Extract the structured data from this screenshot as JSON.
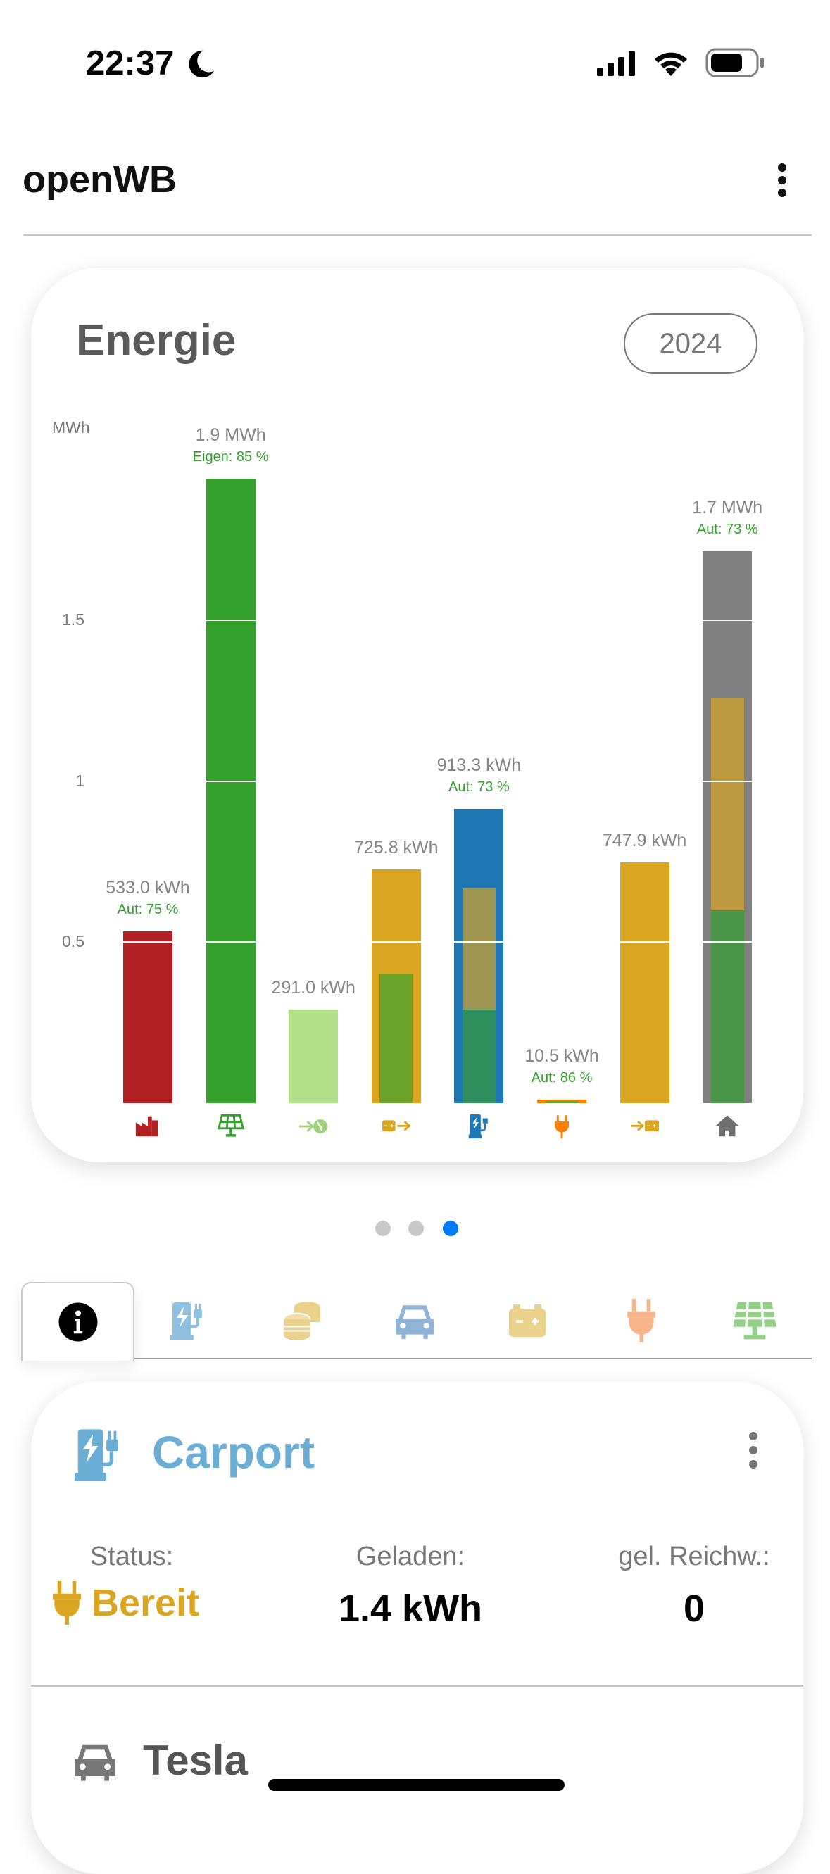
{
  "status_bar": {
    "time": "22:37",
    "icons": [
      "moon-icon",
      "signal-icon",
      "wifi-icon",
      "battery-icon"
    ]
  },
  "header": {
    "title": "openWB",
    "menu_icon": "kebab-menu-icon"
  },
  "energy_card": {
    "title": "Energie",
    "period": "2024"
  },
  "chart_data": {
    "type": "bar",
    "title": "Energie",
    "ylabel": "MWh",
    "ylim": [
      0,
      2.1
    ],
    "yticks": [
      {
        "value": 0.5,
        "label": "0.5"
      },
      {
        "value": 1,
        "label": "1"
      },
      {
        "value": 1.5,
        "label": "1.5"
      }
    ],
    "grid": true,
    "bars": [
      {
        "category": "grid-import",
        "icon": "factory-icon",
        "value": 0.533,
        "label": "533.0 kWh",
        "sublabel": "Aut: 75 %",
        "color": "#b22024",
        "icon_color": "#b22024",
        "segments": []
      },
      {
        "category": "pv",
        "icon": "solar-panel-icon",
        "value": 1.94,
        "label": "1.9 MWh",
        "sublabel": "Eigen: 85 %",
        "color": "#33a02c",
        "icon_color": "#33a02c",
        "segments": []
      },
      {
        "category": "grid-export",
        "icon": "arrow-to-globe-icon",
        "value": 0.291,
        "label": "291.0 kWh",
        "sublabel": "",
        "color": "#b2df8a",
        "icon_color": "#9ed37a",
        "segments": []
      },
      {
        "category": "battery-discharge",
        "icon": "battery-out-icon",
        "value": 0.7258,
        "label": "725.8 kWh",
        "sublabel": "",
        "color": "#daa520",
        "icon_color": "#daa520",
        "segments": [
          {
            "from": 0,
            "to": 0.4,
            "color": "#6aa128"
          }
        ]
      },
      {
        "category": "charge-points",
        "icon": "charging-station-icon",
        "value": 0.9133,
        "label": "913.3 kWh",
        "sublabel": "Aut: 73 %",
        "color": "#1f78b4",
        "icon_color": "#1f78b4",
        "segments": [
          {
            "from": 0,
            "to": 0.29,
            "color": "#2e8f5c"
          },
          {
            "from": 0.29,
            "to": 0.668,
            "color": "#9c9450"
          }
        ]
      },
      {
        "category": "devices",
        "icon": "plug-icon",
        "value": 0.0105,
        "label": "10.5 kWh",
        "sublabel": "Aut: 86 %",
        "color": "#ff7f00",
        "icon_color": "#ff7f00",
        "segments": [
          {
            "from": 0,
            "to": 0.006,
            "color": "#6aa128"
          }
        ]
      },
      {
        "category": "battery-charge",
        "icon": "battery-in-icon",
        "value": 0.7479,
        "label": "747.9 kWh",
        "sublabel": "",
        "color": "#daa520",
        "icon_color": "#daa520",
        "segments": []
      },
      {
        "category": "house",
        "icon": "house-icon",
        "value": 1.716,
        "label": "1.7 MWh",
        "sublabel": "Aut: 73 %",
        "color": "#808080",
        "icon_color": "#707070",
        "segments": [
          {
            "from": 0,
            "to": 0.6,
            "color": "#4a9548"
          },
          {
            "from": 0.6,
            "to": 1.258,
            "color": "#bd9a40"
          }
        ]
      }
    ]
  },
  "carousel": {
    "pages": 3,
    "active": 3,
    "active_color": "#007aff"
  },
  "tabs": [
    {
      "name": "info",
      "icon": "info-icon",
      "active": true
    },
    {
      "name": "charge-points",
      "icon": "charging-station-icon"
    },
    {
      "name": "costs",
      "icon": "coins-icon"
    },
    {
      "name": "vehicles",
      "icon": "car-icon"
    },
    {
      "name": "battery",
      "icon": "battery-icon"
    },
    {
      "name": "devices",
      "icon": "plug-icon"
    },
    {
      "name": "pv",
      "icon": "solar-panel-icon"
    }
  ],
  "charge_point": {
    "name": "Carport",
    "status_label": "Status:",
    "status_value": "Bereit",
    "charged_label": "Geladen:",
    "charged_value": "1.4 kWh",
    "range_label": "gel. Reichw.:",
    "range_value": "0",
    "vehicle": "Tesla"
  }
}
